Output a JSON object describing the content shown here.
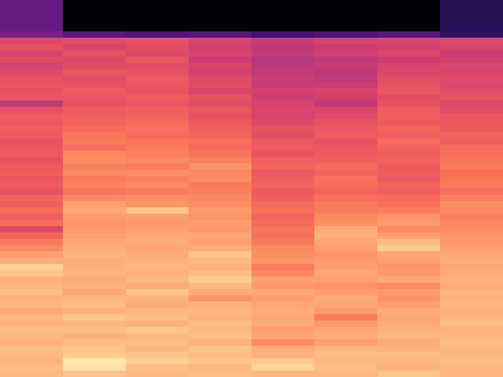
{
  "chart_data": {
    "type": "heatmap",
    "tick_labels": false,
    "color_range": [
      -80,
      0
    ],
    "cells": [
      [
        -56,
        -80,
        -80,
        -80,
        -80,
        -80,
        -80,
        -68
      ],
      [
        -56,
        -80,
        -80,
        -80,
        -80,
        -80,
        -80,
        -68
      ],
      [
        -56,
        -80,
        -80,
        -80,
        -80,
        -80,
        -80,
        -68
      ],
      [
        -56,
        -80,
        -80,
        -80,
        -80,
        -80,
        -80,
        -68
      ],
      [
        -56,
        -80,
        -80,
        -80,
        -80,
        -80,
        -80,
        -68
      ],
      [
        -52,
        -58,
        -60,
        -58,
        -62,
        -60,
        -58,
        -66
      ],
      [
        -32,
        -31,
        -30,
        -33,
        -36,
        -34,
        -33,
        -32
      ],
      [
        -30,
        -33,
        -31,
        -35,
        -38,
        -36,
        -35,
        -34
      ],
      [
        -33,
        -30,
        -32,
        -34,
        -37,
        -35,
        -33,
        -36
      ],
      [
        -31,
        -32,
        -29,
        -36,
        -40,
        -38,
        -36,
        -35
      ],
      [
        -34,
        -31,
        -31,
        -33,
        -39,
        -37,
        -34,
        -33
      ],
      [
        -32,
        -29,
        -30,
        -35,
        -38,
        -39,
        -33,
        -34
      ],
      [
        -30,
        -31,
        -28,
        -32,
        -36,
        -38,
        -31,
        -32
      ],
      [
        -29,
        -30,
        -29,
        -31,
        -37,
        -36,
        -30,
        -33
      ],
      [
        -30,
        -28,
        -30,
        -33,
        -35,
        -34,
        -29,
        -31
      ],
      [
        -29,
        -29,
        -28,
        -30,
        -36,
        -35,
        -31,
        -30
      ],
      [
        -38,
        -30,
        -29,
        -31,
        -34,
        -38,
        -30,
        -32
      ],
      [
        -30,
        -28,
        -27,
        -29,
        -33,
        -33,
        -28,
        -31
      ],
      [
        -28,
        -27,
        -26,
        -30,
        -34,
        -31,
        -27,
        -29
      ],
      [
        -29,
        -26,
        -25,
        -28,
        -32,
        -30,
        -28,
        -28
      ],
      [
        -27,
        -25,
        -24,
        -27,
        -30,
        -29,
        -26,
        -28
      ],
      [
        -28,
        -23,
        -25,
        -26,
        -31,
        -28,
        -27,
        -26
      ],
      [
        -30,
        -22,
        -23,
        -24,
        -29,
        -30,
        -25,
        -27
      ],
      [
        -29,
        -24,
        -22,
        -25,
        -28,
        -29,
        -26,
        -25
      ],
      [
        -28,
        -20,
        -21,
        -23,
        -30,
        -28,
        -27,
        -24
      ],
      [
        -30,
        -19,
        -20,
        -21,
        -27,
        -27,
        -26,
        -23
      ],
      [
        -28,
        -21,
        -22,
        -18,
        -26,
        -25,
        -28,
        -22
      ],
      [
        -27,
        -20,
        -19,
        -20,
        -28,
        -26,
        -27,
        -24
      ],
      [
        -29,
        -22,
        -21,
        -19,
        -27,
        -24,
        -28,
        -23
      ],
      [
        -28,
        -21,
        -20,
        -22,
        -26,
        -25,
        -26,
        -22
      ],
      [
        -30,
        -23,
        -22,
        -21,
        -28,
        -26,
        -27,
        -24
      ],
      [
        -26,
        -20,
        -19,
        -20,
        -27,
        -24,
        -25,
        -21
      ],
      [
        -27,
        -16,
        -18,
        -19,
        -25,
        -22,
        -24,
        -19
      ],
      [
        -25,
        -15,
        -10,
        -17,
        -24,
        -22,
        -21,
        -20
      ],
      [
        -27,
        -17,
        -16,
        -18,
        -26,
        -20,
        -18,
        -21
      ],
      [
        -25,
        -18,
        -17,
        -16,
        -25,
        -19,
        -17,
        -20
      ],
      [
        -32,
        -17,
        -16,
        -17,
        -23,
        -14,
        -20,
        -19
      ],
      [
        -26,
        -16,
        -15,
        -15,
        -24,
        -13,
        -16,
        -18
      ],
      [
        -22,
        -15,
        -14,
        -16,
        -22,
        -15,
        -11,
        -17
      ],
      [
        -20,
        -14,
        -15,
        -14,
        -20,
        -16,
        -9,
        -16
      ],
      [
        -16,
        -13,
        -14,
        -10,
        -19,
        -18,
        -15,
        -15
      ],
      [
        -14,
        -14,
        -13,
        -12,
        -18,
        -17,
        -16,
        -14
      ],
      [
        -8,
        -13,
        -12,
        -13,
        -22,
        -16,
        -18,
        -15
      ],
      [
        -10,
        -12,
        -13,
        -11,
        -20,
        -15,
        -17,
        -14
      ],
      [
        -13,
        -14,
        -12,
        -9,
        -16,
        -16,
        -15,
        -13
      ],
      [
        -12,
        -13,
        -14,
        -12,
        -17,
        -18,
        -20,
        -14
      ],
      [
        -11,
        -15,
        -10,
        -14,
        -15,
        -16,
        -17,
        -12
      ],
      [
        -13,
        -12,
        -13,
        -18,
        -16,
        -14,
        -18,
        -13
      ],
      [
        -12,
        -11,
        -14,
        -13,
        -15,
        -15,
        -16,
        -12
      ],
      [
        -14,
        -13,
        -12,
        -12,
        -14,
        -17,
        -14,
        -13
      ],
      [
        -12,
        -10,
        -11,
        -13,
        -15,
        -22,
        -15,
        -12
      ],
      [
        -13,
        -12,
        -13,
        -11,
        -14,
        -17,
        -14,
        -11
      ],
      [
        -11,
        -11,
        -10,
        -12,
        -16,
        -15,
        -13,
        -13
      ],
      [
        -12,
        -13,
        -12,
        -11,
        -15,
        -14,
        -12,
        -12
      ],
      [
        -13,
        -11,
        -11,
        -13,
        -20,
        -16,
        -14,
        -11
      ],
      [
        -11,
        -10,
        -12,
        -10,
        -14,
        -12,
        -13,
        -12
      ],
      [
        -12,
        -9,
        -10,
        -11,
        -13,
        -11,
        -11,
        -12
      ],
      [
        -13,
        -4,
        -8,
        -10,
        -9,
        -12,
        -12,
        -11
      ],
      [
        -11,
        -5,
        -11,
        -12,
        -7,
        -11,
        -13,
        -12
      ],
      [
        -12,
        -10,
        -12,
        -11,
        -12,
        -12,
        -10,
        -12
      ]
    ]
  }
}
